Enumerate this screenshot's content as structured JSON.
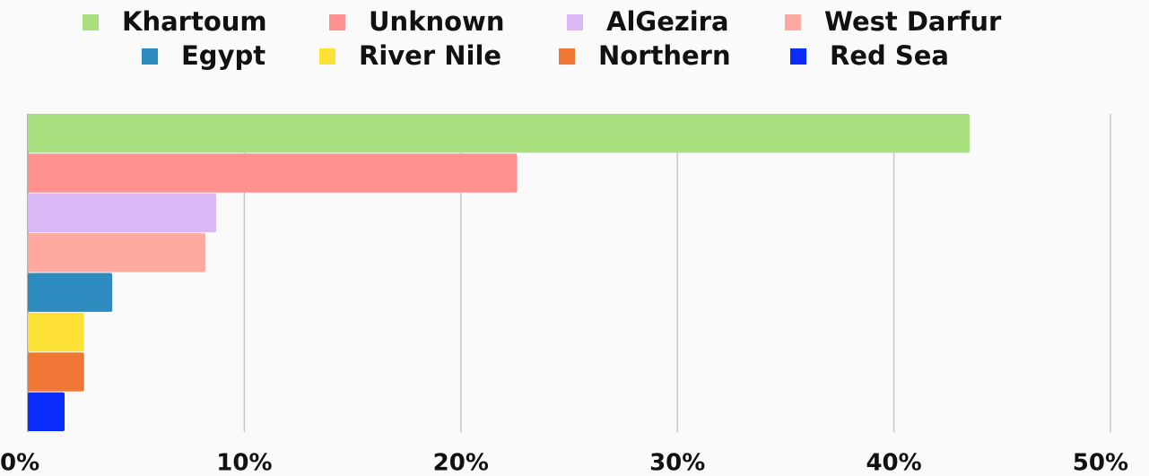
{
  "chart_data": {
    "type": "bar",
    "orientation": "horizontal",
    "series": [
      {
        "name": "Khartoum",
        "color": "#a8e07f",
        "values": [
          43.5
        ]
      },
      {
        "name": "Unknown",
        "color": "#ff9191",
        "values": [
          22.6
        ]
      },
      {
        "name": "AlGezira",
        "color": "#d9b8f5",
        "values": [
          8.7
        ]
      },
      {
        "name": "West Darfur",
        "color": "#ffaaa0",
        "values": [
          8.2
        ]
      },
      {
        "name": "Egypt",
        "color": "#2e8bbf",
        "values": [
          3.9
        ]
      },
      {
        "name": "River Nile",
        "color": "#fde134",
        "values": [
          2.6
        ]
      },
      {
        "name": "Northern",
        "color": "#f07735",
        "values": [
          2.6
        ]
      },
      {
        "name": "Red Sea",
        "color": "#0a2dfb",
        "values": [
          1.7
        ]
      }
    ],
    "xlim": [
      0,
      50
    ],
    "xticks": [
      {
        "value": 0,
        "label": "0%"
      },
      {
        "value": 10,
        "label": "10%"
      },
      {
        "value": 20,
        "label": "20%"
      },
      {
        "value": 30,
        "label": "30%"
      },
      {
        "value": 40,
        "label": "40%"
      },
      {
        "value": 50,
        "label": "50%"
      }
    ],
    "grid": true,
    "legend": "top"
  }
}
